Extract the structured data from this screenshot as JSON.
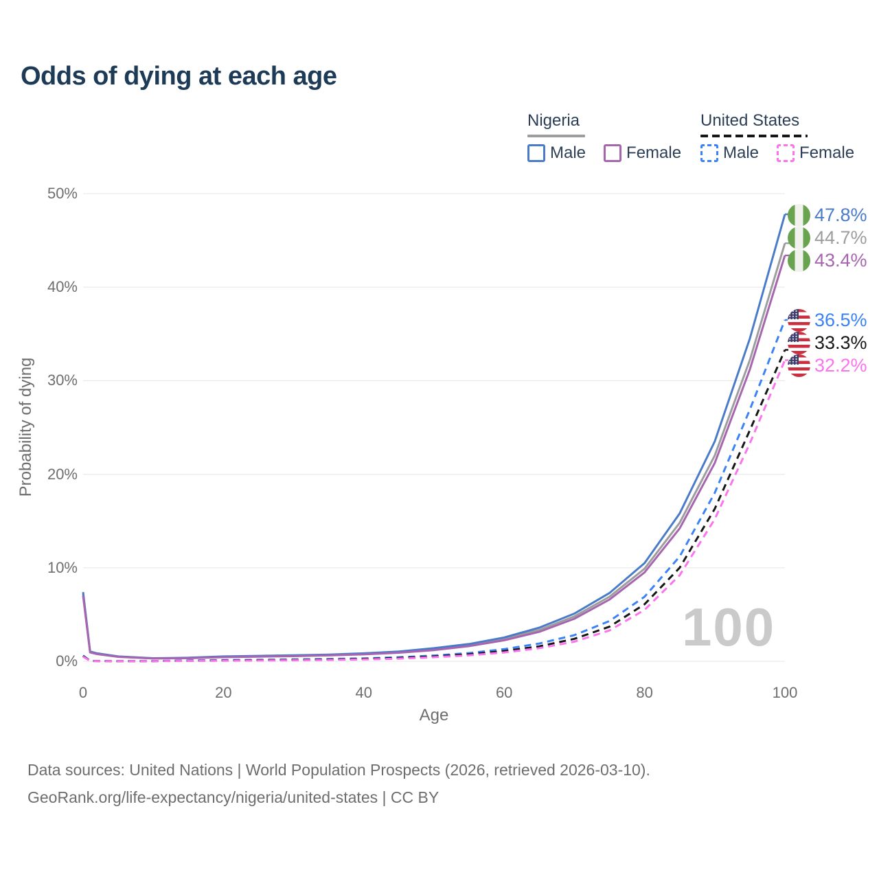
{
  "title": "Odds of dying at each age",
  "watermark": "100",
  "legend": {
    "groups": [
      {
        "label": "Nigeria",
        "line_style": "solid",
        "underline_color": "#9d9d9d",
        "items": [
          {
            "label": "Male",
            "color": "#4a7bc9"
          },
          {
            "label": "Female",
            "color": "#a765af"
          }
        ]
      },
      {
        "label": "United States",
        "line_style": "dashed",
        "underline_color": "#161616",
        "items": [
          {
            "label": "Male",
            "color": "#3b82f6"
          },
          {
            "label": "Female",
            "color": "#fb73ee"
          }
        ]
      }
    ]
  },
  "footer": {
    "line1": "Data sources: United Nations | World Population Prospects (2026, retrieved 2026-03-10).",
    "line2": "GeoRank.org/life-expectancy/nigeria/united-states | CC BY"
  },
  "chart_data": {
    "type": "line",
    "title": "Odds of dying at each age",
    "xlabel": "Age",
    "ylabel": "Probability of dying",
    "xlim": [
      0,
      100
    ],
    "ylim": [
      0,
      50
    ],
    "x_ticks": [
      0,
      20,
      40,
      60,
      80,
      100
    ],
    "y_ticks": [
      "0%",
      "10%",
      "20%",
      "30%",
      "40%",
      "50%"
    ],
    "grid": "horizontal",
    "legend_position": "top-right",
    "x": [
      0,
      1,
      2,
      5,
      10,
      15,
      20,
      25,
      30,
      35,
      40,
      45,
      50,
      55,
      60,
      65,
      70,
      75,
      80,
      85,
      90,
      95,
      100
    ],
    "series": [
      {
        "id": "ng-total",
        "name": "Nigeria",
        "country": "Nigeria",
        "color": "#9d9d9d",
        "dash": "solid",
        "end_value": 44.7,
        "end_label": "44.7%",
        "flag": "ng",
        "y": [
          7.2,
          1.0,
          0.8,
          0.5,
          0.31,
          0.35,
          0.47,
          0.53,
          0.59,
          0.67,
          0.79,
          0.98,
          1.3,
          1.72,
          2.4,
          3.35,
          4.8,
          6.9,
          9.9,
          14.8,
          22.0,
          32.2,
          44.7
        ]
      },
      {
        "id": "ng-male",
        "name": "Nigeria Male",
        "country": "Nigeria",
        "color": "#4a7bc9",
        "dash": "solid",
        "end_value": 47.8,
        "end_label": "47.8%",
        "flag": "ng",
        "y": [
          7.4,
          1.05,
          0.85,
          0.52,
          0.33,
          0.38,
          0.52,
          0.58,
          0.64,
          0.72,
          0.85,
          1.05,
          1.4,
          1.85,
          2.55,
          3.6,
          5.1,
          7.3,
          10.5,
          15.8,
          23.5,
          34.5,
          47.8
        ]
      },
      {
        "id": "ng-female",
        "name": "Nigeria Female",
        "country": "Nigeria",
        "color": "#a765af",
        "dash": "solid",
        "end_value": 43.4,
        "end_label": "43.4%",
        "flag": "ng",
        "y": [
          7.0,
          0.95,
          0.77,
          0.48,
          0.3,
          0.33,
          0.44,
          0.5,
          0.55,
          0.63,
          0.74,
          0.92,
          1.2,
          1.62,
          2.25,
          3.15,
          4.55,
          6.6,
          9.5,
          14.2,
          21.2,
          31.2,
          43.4
        ]
      },
      {
        "id": "us-male",
        "name": "United States Male",
        "country": "United States",
        "color": "#3b82f6",
        "dash": "dashed",
        "end_value": 36.5,
        "end_label": "36.5%",
        "flag": "us",
        "y": [
          0.62,
          0.05,
          0.03,
          0.02,
          0.03,
          0.08,
          0.13,
          0.16,
          0.2,
          0.25,
          0.31,
          0.43,
          0.62,
          0.88,
          1.3,
          1.9,
          2.8,
          4.3,
          6.9,
          11.2,
          18.0,
          26.9,
          36.5
        ]
      },
      {
        "id": "us-total",
        "name": "United States",
        "country": "United States",
        "color": "#161616",
        "dash": "dashed",
        "end_value": 33.3,
        "end_label": "33.3%",
        "flag": "us",
        "y": [
          0.56,
          0.045,
          0.028,
          0.018,
          0.025,
          0.06,
          0.09,
          0.12,
          0.15,
          0.19,
          0.26,
          0.36,
          0.52,
          0.75,
          1.1,
          1.6,
          2.4,
          3.7,
          6.1,
          10.0,
          16.3,
          24.7,
          33.3
        ]
      },
      {
        "id": "us-female",
        "name": "United States Female",
        "country": "United States",
        "color": "#fb73ee",
        "dash": "dashed",
        "end_value": 32.2,
        "end_label": "32.2%",
        "flag": "us",
        "y": [
          0.51,
          0.04,
          0.025,
          0.016,
          0.02,
          0.04,
          0.06,
          0.08,
          0.11,
          0.15,
          0.2,
          0.29,
          0.44,
          0.64,
          0.95,
          1.4,
          2.1,
          3.3,
          5.5,
          9.2,
          15.2,
          23.3,
          32.2
        ]
      }
    ]
  }
}
